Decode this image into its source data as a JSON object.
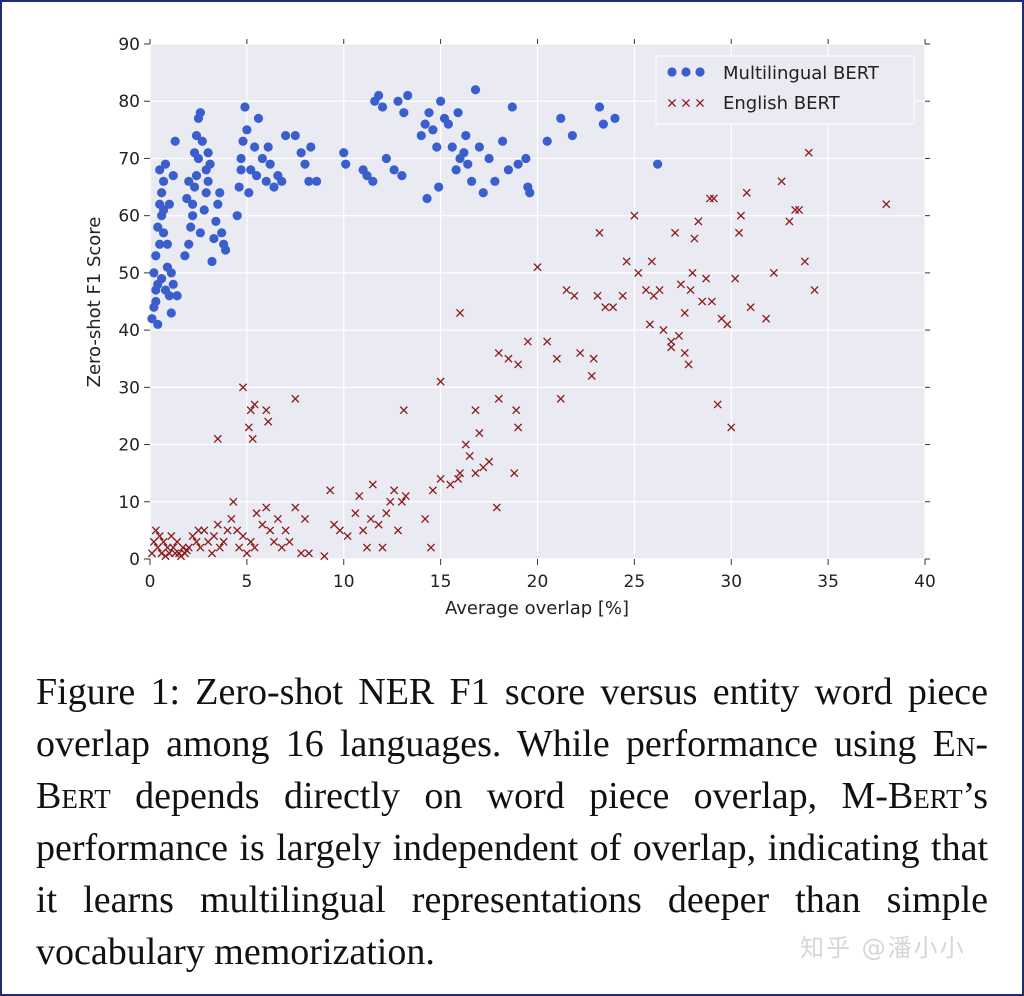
{
  "chart_data": {
    "type": "scatter",
    "xlabel": "Average overlap [%]",
    "ylabel": "Zero-shot F1 Score",
    "xlim": [
      0,
      40
    ],
    "ylim": [
      0,
      90
    ],
    "xticks": [
      0,
      5,
      10,
      15,
      20,
      25,
      30,
      35,
      40
    ],
    "yticks": [
      0,
      10,
      20,
      30,
      40,
      50,
      60,
      70,
      80,
      90
    ],
    "grid": true,
    "legend_position": "top-right",
    "colors": {
      "Multilingual BERT": "#3a5fcd",
      "English BERT": "#8b1a1a",
      "plot_bg": "#eaeaf2"
    },
    "series": [
      {
        "name": "Multilingual BERT",
        "marker": "circle",
        "points": [
          [
            0.1,
            42
          ],
          [
            0.2,
            44
          ],
          [
            0.3,
            47
          ],
          [
            0.2,
            50
          ],
          [
            0.4,
            48
          ],
          [
            0.3,
            53
          ],
          [
            0.5,
            55
          ],
          [
            0.4,
            58
          ],
          [
            0.6,
            60
          ],
          [
            0.5,
            62
          ],
          [
            0.6,
            64
          ],
          [
            0.7,
            66
          ],
          [
            0.5,
            68
          ],
          [
            0.8,
            69
          ],
          [
            0.7,
            57
          ],
          [
            0.9,
            51
          ],
          [
            0.3,
            45
          ],
          [
            0.6,
            49
          ],
          [
            0.8,
            47
          ],
          [
            0.4,
            41
          ],
          [
            1.0,
            46
          ],
          [
            1.2,
            48
          ],
          [
            1.4,
            46
          ],
          [
            1.1,
            50
          ],
          [
            1.2,
            67
          ],
          [
            1.3,
            73
          ],
          [
            1.0,
            62
          ],
          [
            0.9,
            55
          ],
          [
            1.1,
            43
          ],
          [
            0.7,
            61
          ],
          [
            1.8,
            53
          ],
          [
            2.0,
            55
          ],
          [
            2.1,
            58
          ],
          [
            2.2,
            62
          ],
          [
            2.3,
            65
          ],
          [
            2.4,
            67
          ],
          [
            2.5,
            70
          ],
          [
            2.4,
            74
          ],
          [
            2.5,
            77
          ],
          [
            2.6,
            78
          ],
          [
            2.2,
            60
          ],
          [
            2.6,
            57
          ],
          [
            2.8,
            61
          ],
          [
            2.9,
            64
          ],
          [
            3.0,
            66
          ],
          [
            3.1,
            69
          ],
          [
            3.2,
            52
          ],
          [
            3.3,
            56
          ],
          [
            3.4,
            59
          ],
          [
            3.5,
            62
          ],
          [
            3.6,
            64
          ],
          [
            3.7,
            57
          ],
          [
            3.8,
            55
          ],
          [
            3.9,
            54
          ],
          [
            2.7,
            73
          ],
          [
            2.9,
            68
          ],
          [
            3.0,
            71
          ],
          [
            2.0,
            66
          ],
          [
            1.9,
            63
          ],
          [
            2.3,
            71
          ],
          [
            4.5,
            60
          ],
          [
            4.6,
            65
          ],
          [
            4.7,
            70
          ],
          [
            4.8,
            73
          ],
          [
            4.9,
            79
          ],
          [
            5.0,
            75
          ],
          [
            5.2,
            68
          ],
          [
            5.4,
            72
          ],
          [
            5.6,
            77
          ],
          [
            5.8,
            70
          ],
          [
            6.0,
            66
          ],
          [
            6.2,
            69
          ],
          [
            6.4,
            65
          ],
          [
            6.6,
            67
          ],
          [
            7.0,
            74
          ],
          [
            7.5,
            74
          ],
          [
            7.8,
            71
          ],
          [
            8.0,
            69
          ],
          [
            8.3,
            72
          ],
          [
            8.6,
            66
          ],
          [
            5.1,
            64
          ],
          [
            5.5,
            67
          ],
          [
            6.1,
            72
          ],
          [
            4.7,
            68
          ],
          [
            6.8,
            66
          ],
          [
            8.2,
            66
          ],
          [
            10.0,
            71
          ],
          [
            10.1,
            69
          ],
          [
            11.0,
            68
          ],
          [
            11.2,
            67
          ],
          [
            11.5,
            66
          ],
          [
            11.6,
            80
          ],
          [
            11.8,
            81
          ],
          [
            12.0,
            79
          ],
          [
            12.2,
            70
          ],
          [
            12.6,
            68
          ],
          [
            13.0,
            67
          ],
          [
            12.8,
            80
          ],
          [
            13.1,
            78
          ],
          [
            13.3,
            81
          ],
          [
            14.0,
            74
          ],
          [
            14.2,
            76
          ],
          [
            14.4,
            78
          ],
          [
            14.6,
            75
          ],
          [
            14.8,
            72
          ],
          [
            15.0,
            80
          ],
          [
            15.2,
            77
          ],
          [
            15.4,
            76
          ],
          [
            15.6,
            72
          ],
          [
            15.8,
            68
          ],
          [
            16.0,
            70
          ],
          [
            16.2,
            71
          ],
          [
            16.4,
            69
          ],
          [
            16.6,
            66
          ],
          [
            16.8,
            82
          ],
          [
            17.0,
            72
          ],
          [
            17.2,
            64
          ],
          [
            17.5,
            70
          ],
          [
            17.8,
            66
          ],
          [
            18.2,
            73
          ],
          [
            18.5,
            68
          ],
          [
            18.7,
            79
          ],
          [
            19.0,
            69
          ],
          [
            19.5,
            65
          ],
          [
            19.6,
            64
          ],
          [
            19.4,
            70
          ],
          [
            14.3,
            63
          ],
          [
            14.9,
            65
          ],
          [
            15.9,
            78
          ],
          [
            16.3,
            74
          ],
          [
            20.5,
            73
          ],
          [
            21.2,
            77
          ],
          [
            21.8,
            74
          ],
          [
            23.2,
            79
          ],
          [
            23.4,
            76
          ],
          [
            24.0,
            77
          ],
          [
            26.2,
            69
          ]
        ]
      },
      {
        "name": "English BERT",
        "marker": "x",
        "points": [
          [
            0.1,
            1
          ],
          [
            0.2,
            3
          ],
          [
            0.3,
            5
          ],
          [
            0.4,
            2
          ],
          [
            0.5,
            4
          ],
          [
            0.6,
            1
          ],
          [
            0.7,
            3
          ],
          [
            0.8,
            0.5
          ],
          [
            0.9,
            2
          ],
          [
            1.0,
            1
          ],
          [
            1.1,
            4
          ],
          [
            1.2,
            2
          ],
          [
            1.3,
            1
          ],
          [
            1.4,
            3
          ],
          [
            1.5,
            1
          ],
          [
            1.6,
            0.5
          ],
          [
            1.7,
            2
          ],
          [
            1.8,
            1
          ],
          [
            1.9,
            1.5
          ],
          [
            2.0,
            2
          ],
          [
            2.2,
            4
          ],
          [
            2.4,
            3
          ],
          [
            2.5,
            5
          ],
          [
            2.6,
            2
          ],
          [
            2.8,
            5
          ],
          [
            3.0,
            3
          ],
          [
            3.2,
            1
          ],
          [
            3.3,
            4
          ],
          [
            3.5,
            6
          ],
          [
            3.6,
            2
          ],
          [
            3.8,
            3
          ],
          [
            4.0,
            5
          ],
          [
            4.2,
            7
          ],
          [
            4.3,
            10
          ],
          [
            4.5,
            5
          ],
          [
            4.6,
            2
          ],
          [
            4.8,
            4
          ],
          [
            5.0,
            1
          ],
          [
            5.2,
            3
          ],
          [
            5.4,
            2
          ],
          [
            5.5,
            8
          ],
          [
            5.8,
            6
          ],
          [
            6.0,
            9
          ],
          [
            6.2,
            5
          ],
          [
            6.4,
            3
          ],
          [
            6.6,
            7
          ],
          [
            6.8,
            2
          ],
          [
            7.0,
            5
          ],
          [
            7.2,
            3
          ],
          [
            7.5,
            9
          ],
          [
            7.8,
            1
          ],
          [
            8.0,
            7
          ],
          [
            8.2,
            1
          ],
          [
            9.0,
            0.5
          ],
          [
            9.3,
            12
          ],
          [
            9.5,
            6
          ],
          [
            9.8,
            5
          ],
          [
            10.2,
            4
          ],
          [
            10.6,
            8
          ],
          [
            10.8,
            11
          ],
          [
            11.0,
            5
          ],
          [
            11.2,
            2
          ],
          [
            11.4,
            7
          ],
          [
            11.5,
            13
          ],
          [
            11.8,
            6
          ],
          [
            12.0,
            2
          ],
          [
            12.2,
            8
          ],
          [
            12.4,
            10
          ],
          [
            12.6,
            12
          ],
          [
            12.8,
            5
          ],
          [
            13.0,
            10
          ],
          [
            13.2,
            11
          ],
          [
            14.2,
            7
          ],
          [
            14.5,
            2
          ],
          [
            14.6,
            12
          ],
          [
            15.0,
            14
          ],
          [
            15.5,
            13
          ],
          [
            15.9,
            14
          ],
          [
            16.0,
            15
          ],
          [
            16.3,
            20
          ],
          [
            16.5,
            18
          ],
          [
            16.8,
            15
          ],
          [
            17.0,
            22
          ],
          [
            17.2,
            16
          ],
          [
            17.5,
            17
          ],
          [
            17.9,
            9
          ],
          [
            18.0,
            28
          ],
          [
            18.8,
            15
          ],
          [
            18.9,
            26
          ],
          [
            19.0,
            23
          ],
          [
            3.5,
            21
          ],
          [
            4.8,
            30
          ],
          [
            5.2,
            26
          ],
          [
            5.4,
            27
          ],
          [
            5.1,
            23
          ],
          [
            5.3,
            21
          ],
          [
            6.0,
            26
          ],
          [
            6.1,
            24
          ],
          [
            7.5,
            28
          ],
          [
            13.1,
            26
          ],
          [
            15.0,
            31
          ],
          [
            16.0,
            43
          ],
          [
            16.8,
            26
          ],
          [
            18.0,
            36
          ],
          [
            18.5,
            35
          ],
          [
            19.0,
            34
          ],
          [
            19.5,
            38
          ],
          [
            20.0,
            51
          ],
          [
            20.5,
            38
          ],
          [
            21.0,
            35
          ],
          [
            21.2,
            28
          ],
          [
            21.5,
            47
          ],
          [
            21.9,
            46
          ],
          [
            22.2,
            36
          ],
          [
            22.8,
            32
          ],
          [
            22.9,
            35
          ],
          [
            23.1,
            46
          ],
          [
            23.2,
            57
          ],
          [
            23.5,
            44
          ],
          [
            23.9,
            44
          ],
          [
            24.6,
            52
          ],
          [
            25.0,
            60
          ],
          [
            25.2,
            50
          ],
          [
            25.6,
            47
          ],
          [
            25.8,
            41
          ],
          [
            26.0,
            46
          ],
          [
            26.3,
            47
          ],
          [
            26.5,
            40
          ],
          [
            26.9,
            38
          ],
          [
            27.1,
            57
          ],
          [
            27.3,
            39
          ],
          [
            27.4,
            48
          ],
          [
            27.6,
            36
          ],
          [
            27.8,
            34
          ],
          [
            27.9,
            47
          ],
          [
            28.1,
            56
          ],
          [
            28.3,
            59
          ],
          [
            28.5,
            45
          ],
          [
            28.7,
            49
          ],
          [
            28.9,
            63
          ],
          [
            29.1,
            63
          ],
          [
            29.3,
            27
          ],
          [
            29.5,
            42
          ],
          [
            29.8,
            41
          ],
          [
            30.0,
            23
          ],
          [
            30.2,
            49
          ],
          [
            30.4,
            57
          ],
          [
            30.5,
            60
          ],
          [
            30.8,
            64
          ],
          [
            31.0,
            44
          ],
          [
            31.8,
            42
          ],
          [
            32.2,
            50
          ],
          [
            32.6,
            66
          ],
          [
            33.0,
            59
          ],
          [
            33.3,
            61
          ],
          [
            33.5,
            61
          ],
          [
            33.8,
            52
          ],
          [
            34.0,
            71
          ],
          [
            34.3,
            47
          ],
          [
            38.0,
            62
          ],
          [
            26.9,
            37
          ],
          [
            27.6,
            43
          ],
          [
            28.0,
            50
          ],
          [
            29.0,
            45
          ],
          [
            24.4,
            46
          ],
          [
            25.9,
            52
          ]
        ]
      }
    ]
  },
  "caption": {
    "label": "Figure 1:",
    "p1": " Zero-shot ",
    "ner": "NER",
    "p2": " F1 score versus entity word piece overlap among 16 languages. While performance using ",
    "enbert": "En-Bert",
    "p3": " depends directly on word piece overlap, M-",
    "mbert": "Bert",
    "p4": "’s performance is largely independent of overlap, indicating that it learns multilingual representations deeper than simple vocabulary memorization."
  },
  "watermark": "知乎 @潘小小"
}
